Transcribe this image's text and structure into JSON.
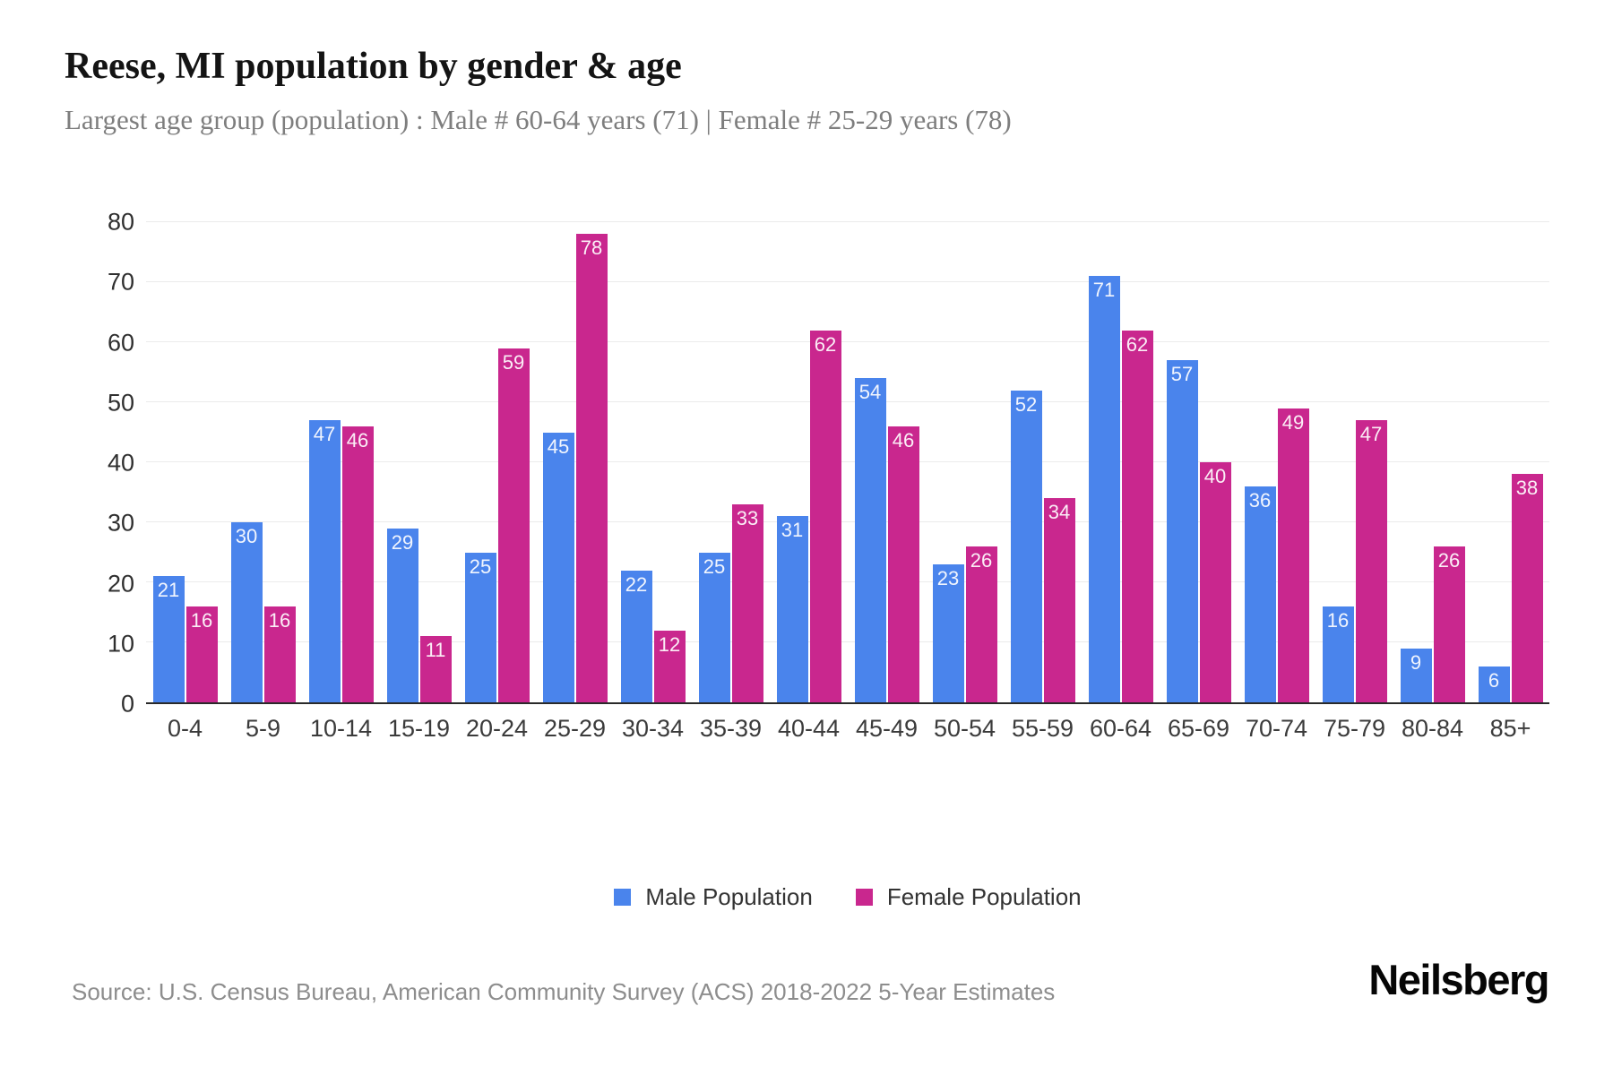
{
  "header": {
    "title": "Reese, MI population by gender & age",
    "subtitle": "Largest age group (population) : Male # 60-64 years (71) | Female # 25-29 years (78)"
  },
  "chart_data": {
    "type": "bar",
    "title": "Reese, MI population by gender & age",
    "subtitle": "Largest age group (population) : Male # 60-64 years (71) | Female # 25-29 years (78)",
    "categories": [
      "0-4",
      "5-9",
      "10-14",
      "15-19",
      "20-24",
      "25-29",
      "30-34",
      "35-39",
      "40-44",
      "45-49",
      "50-54",
      "55-59",
      "60-64",
      "65-69",
      "70-74",
      "75-79",
      "80-84",
      "85+"
    ],
    "series": [
      {
        "name": "Male Population",
        "color": "#4a84ec",
        "values": [
          21,
          30,
          47,
          29,
          25,
          45,
          22,
          25,
          31,
          54,
          23,
          52,
          71,
          57,
          36,
          16,
          9,
          6
        ]
      },
      {
        "name": "Female Population",
        "color": "#c9278e",
        "values": [
          16,
          16,
          46,
          11,
          59,
          78,
          12,
          33,
          62,
          46,
          26,
          34,
          62,
          40,
          49,
          47,
          26,
          38
        ]
      }
    ],
    "xlabel": "",
    "ylabel": "",
    "ylim": [
      0,
      80
    ],
    "yticks": [
      0,
      10,
      20,
      30,
      40,
      50,
      60,
      70,
      80
    ],
    "grid": true,
    "legend_position": "bottom",
    "value_labels": "inside-top"
  },
  "footer": {
    "source": "Source: U.S. Census Bureau, American Community Survey (ACS) 2018-2022 5-Year Estimates",
    "brand": "Neilsberg"
  },
  "colors": {
    "male": "#4a84ec",
    "female": "#c9278e",
    "gridline": "#ebebeb",
    "axis": "#2a2a2a",
    "background": "#ffffff"
  }
}
